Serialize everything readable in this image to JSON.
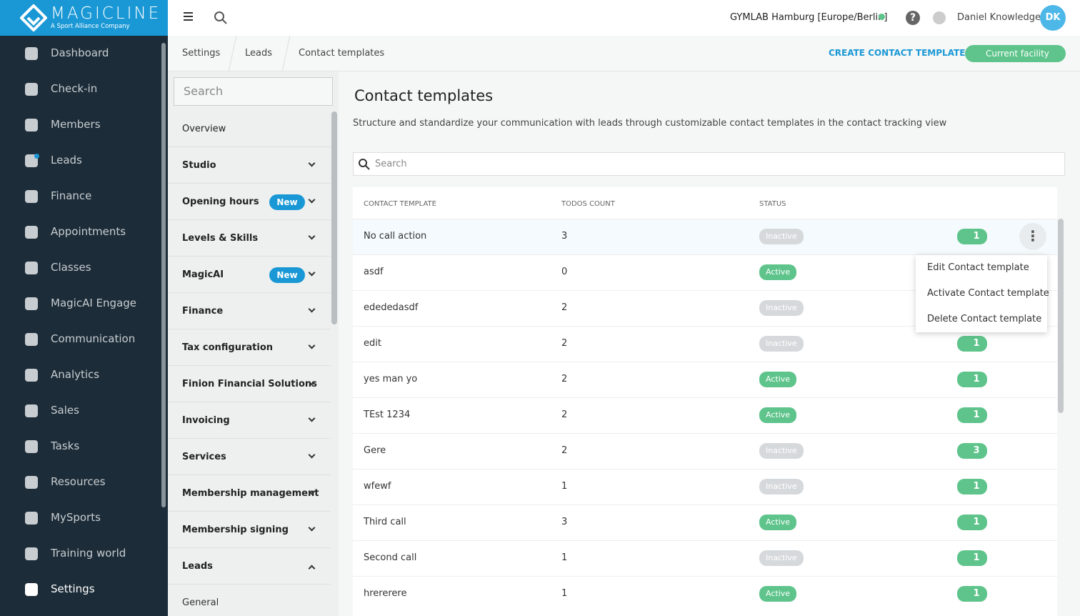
{
  "brand": {
    "name": "MAGICLINE",
    "tagline": "A Sport Alliance Company"
  },
  "topbar": {
    "facility": "GYMLAB Hamburg [Europe/Berlin]",
    "user": "Daniel Knowledge",
    "initials": "DK"
  },
  "nav": {
    "items": [
      "Dashboard",
      "Check-in",
      "Members",
      "Leads",
      "Finance",
      "Appointments",
      "Classes",
      "MagicAI Engage",
      "Communication",
      "Analytics",
      "Sales",
      "Tasks",
      "Resources",
      "MySports",
      "Training world",
      "Settings"
    ],
    "active": 15,
    "dot": 3
  },
  "breadcrumb": [
    "Settings",
    "Leads",
    "Contact templates"
  ],
  "actions": {
    "create": "CREATE CONTACT TEMPLATE",
    "facility_filter": "Current facility"
  },
  "settings_menu": {
    "search_placeholder": "Search",
    "items": [
      {
        "label": "Overview"
      },
      {
        "label": "Studio"
      },
      {
        "label": "Opening hours",
        "badge": "New"
      },
      {
        "label": "Levels & Skills"
      },
      {
        "label": "MagicAI",
        "badge": "New"
      },
      {
        "label": "Finance"
      },
      {
        "label": "Tax configuration"
      },
      {
        "label": "Finion Financial Solutions"
      },
      {
        "label": "Invoicing"
      },
      {
        "label": "Services"
      },
      {
        "label": "Membership management"
      },
      {
        "label": "Membership signing"
      },
      {
        "label": "Leads",
        "open": true
      }
    ],
    "sub_items": [
      "General"
    ]
  },
  "page": {
    "title": "Contact templates",
    "description": "Structure and standardize your communication with leads through customizable contact templates in the contact tracking view",
    "search_placeholder": "Search"
  },
  "table": {
    "columns": [
      "CONTACT TEMPLATE",
      "TODOS COUNT",
      "STATUS"
    ],
    "status_colors": {
      "Active": "#5ec48b",
      "Inactive": "#d6d9db"
    },
    "rows": [
      {
        "name": "No call action",
        "todos": 3,
        "status": "Inactive",
        "facilities": 1
      },
      {
        "name": "asdf",
        "todos": 0,
        "status": "Active",
        "facilities": null
      },
      {
        "name": "edededasdf",
        "todos": 2,
        "status": "Inactive",
        "facilities": null
      },
      {
        "name": "edit",
        "todos": 2,
        "status": "Inactive",
        "facilities": 1
      },
      {
        "name": "yes man yo",
        "todos": 2,
        "status": "Active",
        "facilities": 1
      },
      {
        "name": "TEst 1234",
        "todos": 2,
        "status": "Active",
        "facilities": 1
      },
      {
        "name": "Gere",
        "todos": 2,
        "status": "Inactive",
        "facilities": 3
      },
      {
        "name": "wfewf",
        "todos": 1,
        "status": "Inactive",
        "facilities": 1
      },
      {
        "name": "Third call",
        "todos": 3,
        "status": "Active",
        "facilities": 1
      },
      {
        "name": "Second call",
        "todos": 1,
        "status": "Inactive",
        "facilities": 1
      },
      {
        "name": "hrererere",
        "todos": 1,
        "status": "Active",
        "facilities": 1
      }
    ]
  },
  "context_menu": [
    "Edit Contact template",
    "Activate Contact template",
    "Delete Contact template"
  ]
}
